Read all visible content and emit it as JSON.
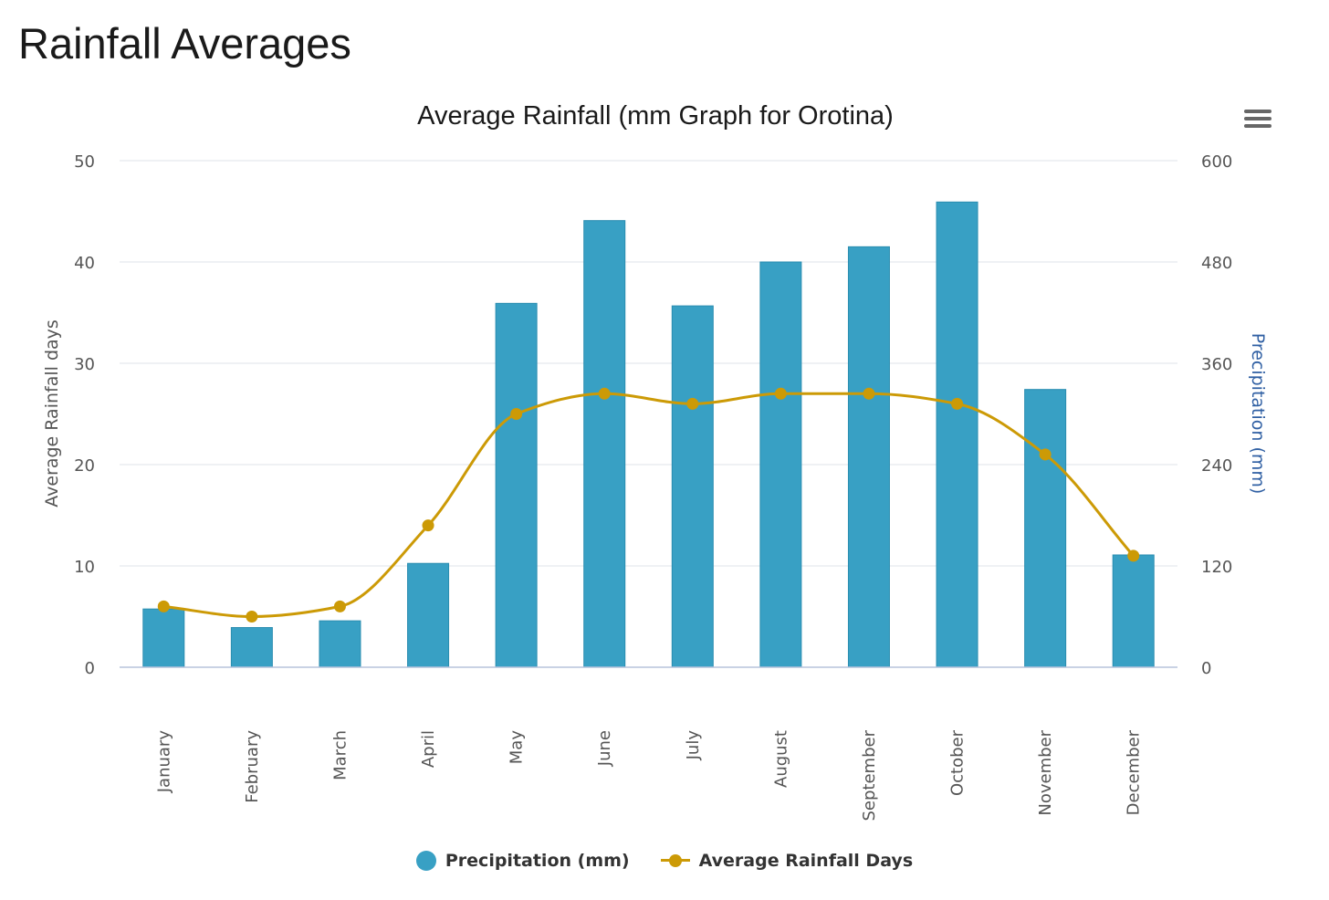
{
  "page": {
    "heading": "Rainfall Averages"
  },
  "colors": {
    "bar": "#38a0c4",
    "bar_border": "#2a8db0",
    "line": "#cc9a06",
    "grid": "#dfe3ea",
    "axis_line": "#b7c3dc",
    "right_axis_title": "#2f5fa3",
    "tick_text": "#555555"
  },
  "menu": {
    "icon": "hamburger-menu-icon"
  },
  "chart_data": {
    "type": "bar",
    "title": "Average Rainfall (mm Graph for Orotina)",
    "categories": [
      "January",
      "February",
      "March",
      "April",
      "May",
      "June",
      "July",
      "August",
      "September",
      "October",
      "November",
      "December"
    ],
    "series": [
      {
        "name": "Precipitation (mm)",
        "type": "bar",
        "axis": "right",
        "values": [
          69,
          47,
          55,
          123,
          431,
          529,
          428,
          480,
          498,
          551,
          329,
          133
        ]
      },
      {
        "name": "Average Rainfall Days",
        "type": "line",
        "axis": "left",
        "smooth": true,
        "values": [
          6,
          5,
          6,
          14,
          25,
          27,
          26,
          27,
          27,
          26,
          21,
          11
        ]
      }
    ],
    "left_axis": {
      "title": "Average Rainfall days",
      "range": [
        0,
        50
      ],
      "ticks": [
        "0",
        "10",
        "20",
        "30",
        "40",
        "50"
      ]
    },
    "right_axis": {
      "title": "Precipitation (mm)",
      "range": [
        0,
        600
      ],
      "ticks": [
        "0",
        "120",
        "240",
        "360",
        "480",
        "600"
      ]
    },
    "grid": true,
    "legend_position": "bottom"
  }
}
